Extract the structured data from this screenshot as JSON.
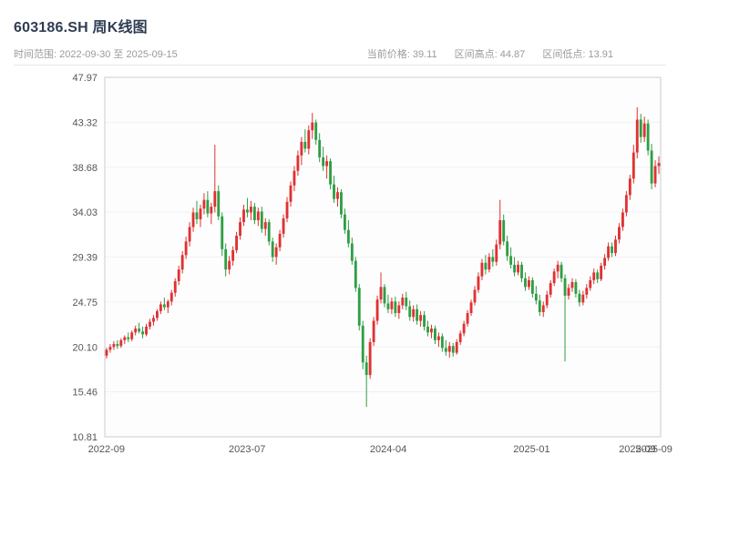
{
  "header": {
    "title": "603186.SH 周K线图",
    "subtitle_left": "时间范围: 2022-09-30 至 2025-09-15",
    "stats": [
      "当前价格: 39.11",
      "区间高点: 44.87",
      "区间低点: 13.91"
    ]
  },
  "chart_data": {
    "type": "candlestick",
    "title": "603186.SH 周K线图",
    "period": "weekly",
    "date_range": {
      "start": "2022-09-30",
      "end": "2025-09-15"
    },
    "current_price": 39.11,
    "range_high": 44.87,
    "range_low": 13.91,
    "ylim": [
      10.81,
      47.97
    ],
    "y_ticks": [
      10.81,
      15.46,
      20.1,
      24.75,
      29.39,
      34.03,
      38.68,
      43.32,
      47.97
    ],
    "x_ticks": [
      {
        "pos": 0.003,
        "label": "2022-09"
      },
      {
        "pos": 0.256,
        "label": "2023-07"
      },
      {
        "pos": 0.51,
        "label": "2024-04"
      },
      {
        "pos": 0.768,
        "label": "2025-01"
      },
      {
        "pos": 0.958,
        "label": "2025-09"
      },
      {
        "pos": 0.988,
        "label": "2025-09"
      }
    ],
    "up_color": "#e03131",
    "down_color": "#2f9e44",
    "grid": true,
    "legend": "none",
    "candles": [
      [
        19.2,
        20.0,
        18.9,
        19.8
      ],
      [
        19.8,
        20.4,
        19.5,
        20.1
      ],
      [
        20.1,
        20.7,
        19.8,
        20.4
      ],
      [
        20.4,
        20.8,
        19.9,
        20.2
      ],
      [
        20.2,
        21.0,
        20.0,
        20.8
      ],
      [
        20.8,
        21.3,
        20.4,
        21.1
      ],
      [
        21.1,
        21.6,
        20.6,
        20.9
      ],
      [
        20.9,
        21.8,
        20.7,
        21.6
      ],
      [
        21.6,
        22.3,
        21.3,
        22.0
      ],
      [
        22.0,
        22.6,
        21.5,
        21.7
      ],
      [
        21.7,
        22.2,
        21.0,
        21.4
      ],
      [
        21.4,
        22.5,
        21.2,
        22.2
      ],
      [
        22.2,
        23.0,
        21.9,
        22.7
      ],
      [
        22.7,
        23.4,
        22.3,
        23.1
      ],
      [
        23.1,
        24.0,
        22.8,
        23.8
      ],
      [
        23.8,
        24.8,
        23.5,
        24.5
      ],
      [
        24.5,
        25.2,
        23.9,
        24.2
      ],
      [
        24.2,
        25.0,
        23.6,
        24.8
      ],
      [
        24.8,
        26.0,
        24.4,
        25.7
      ],
      [
        25.7,
        27.2,
        25.3,
        26.9
      ],
      [
        26.9,
        28.5,
        26.5,
        28.1
      ],
      [
        28.1,
        30.0,
        27.7,
        29.6
      ],
      [
        29.6,
        31.5,
        29.2,
        31.0
      ],
      [
        31.0,
        33.0,
        30.5,
        32.5
      ],
      [
        32.5,
        34.5,
        32.0,
        34.0
      ],
      [
        34.0,
        35.2,
        32.8,
        33.3
      ],
      [
        33.3,
        34.8,
        32.5,
        34.4
      ],
      [
        34.4,
        36.0,
        33.8,
        35.3
      ],
      [
        35.3,
        36.2,
        33.5,
        33.9
      ],
      [
        33.9,
        35.0,
        32.8,
        34.6
      ],
      [
        34.6,
        41.0,
        34.0,
        36.2
      ],
      [
        36.2,
        36.8,
        33.2,
        33.6
      ],
      [
        33.6,
        34.0,
        29.5,
        30.2
      ],
      [
        30.2,
        30.8,
        27.4,
        28.1
      ],
      [
        28.1,
        29.5,
        27.6,
        29.0
      ],
      [
        29.0,
        30.5,
        28.5,
        30.1
      ],
      [
        30.1,
        32.0,
        29.8,
        31.6
      ],
      [
        31.6,
        33.5,
        31.2,
        33.0
      ],
      [
        33.0,
        34.8,
        32.6,
        34.3
      ],
      [
        34.3,
        35.5,
        33.5,
        34.0
      ],
      [
        34.0,
        35.2,
        33.2,
        34.6
      ],
      [
        34.6,
        35.0,
        32.8,
        33.2
      ],
      [
        33.2,
        34.5,
        32.6,
        34.1
      ],
      [
        34.1,
        34.6,
        31.9,
        32.3
      ],
      [
        32.3,
        33.4,
        31.6,
        33.0
      ],
      [
        33.0,
        33.3,
        30.6,
        31.0
      ],
      [
        31.0,
        31.4,
        28.9,
        29.4
      ],
      [
        29.4,
        30.8,
        28.6,
        30.4
      ],
      [
        30.4,
        32.2,
        30.0,
        31.8
      ],
      [
        31.8,
        33.8,
        31.4,
        33.4
      ],
      [
        33.4,
        35.6,
        33.0,
        35.1
      ],
      [
        35.1,
        37.2,
        34.6,
        36.8
      ],
      [
        36.8,
        38.8,
        36.2,
        38.3
      ],
      [
        38.3,
        40.4,
        37.8,
        39.9
      ],
      [
        39.9,
        41.8,
        38.9,
        41.3
      ],
      [
        41.3,
        42.6,
        40.2,
        40.6
      ],
      [
        40.6,
        43.0,
        40.0,
        42.5
      ],
      [
        42.5,
        44.3,
        41.6,
        43.3
      ],
      [
        43.3,
        43.6,
        41.0,
        41.5
      ],
      [
        41.5,
        42.2,
        39.2,
        39.7
      ],
      [
        39.7,
        40.8,
        38.3,
        38.8
      ],
      [
        38.8,
        39.9,
        37.5,
        39.3
      ],
      [
        39.3,
        39.6,
        36.4,
        36.9
      ],
      [
        36.9,
        37.8,
        35.0,
        35.4
      ],
      [
        35.4,
        36.6,
        34.6,
        36.1
      ],
      [
        36.1,
        36.4,
        33.4,
        33.8
      ],
      [
        33.8,
        34.4,
        31.8,
        32.2
      ],
      [
        32.2,
        33.2,
        30.4,
        30.8
      ],
      [
        30.8,
        31.4,
        28.6,
        29.0
      ],
      [
        29.0,
        29.4,
        25.8,
        26.2
      ],
      [
        26.2,
        26.6,
        21.8,
        22.3
      ],
      [
        22.3,
        22.8,
        17.8,
        18.5
      ],
      [
        18.5,
        19.2,
        13.91,
        17.2
      ],
      [
        17.2,
        21.0,
        16.8,
        20.6
      ],
      [
        20.6,
        23.2,
        20.2,
        22.8
      ],
      [
        22.8,
        25.4,
        22.4,
        25.0
      ],
      [
        25.0,
        27.8,
        24.6,
        26.3
      ],
      [
        26.3,
        26.6,
        24.2,
        24.6
      ],
      [
        24.6,
        25.5,
        23.6,
        24.0
      ],
      [
        24.0,
        25.2,
        23.5,
        24.8
      ],
      [
        24.8,
        25.3,
        23.2,
        23.6
      ],
      [
        23.6,
        24.8,
        23.0,
        24.4
      ],
      [
        24.4,
        25.6,
        24.0,
        25.2
      ],
      [
        25.2,
        25.8,
        23.9,
        24.3
      ],
      [
        24.3,
        24.9,
        22.8,
        23.2
      ],
      [
        23.2,
        24.4,
        22.7,
        24.0
      ],
      [
        24.0,
        24.5,
        22.4,
        22.8
      ],
      [
        22.8,
        23.8,
        22.2,
        23.4
      ],
      [
        23.4,
        23.8,
        21.8,
        22.2
      ],
      [
        22.2,
        22.8,
        21.2,
        21.6
      ],
      [
        21.6,
        22.4,
        21.0,
        22.0
      ],
      [
        22.0,
        22.3,
        20.4,
        20.8
      ],
      [
        20.8,
        21.6,
        20.1,
        21.2
      ],
      [
        21.2,
        21.5,
        19.6,
        20.0
      ],
      [
        20.0,
        20.8,
        19.2,
        19.6
      ],
      [
        19.6,
        20.6,
        19.0,
        20.2
      ],
      [
        20.2,
        20.5,
        19.1,
        19.5
      ],
      [
        19.5,
        20.9,
        19.3,
        20.6
      ],
      [
        20.6,
        21.8,
        20.3,
        21.5
      ],
      [
        21.5,
        22.8,
        21.2,
        22.5
      ],
      [
        22.5,
        23.9,
        22.2,
        23.6
      ],
      [
        23.6,
        25.0,
        23.3,
        24.7
      ],
      [
        24.7,
        26.4,
        24.4,
        26.0
      ],
      [
        26.0,
        27.8,
        25.7,
        27.4
      ],
      [
        27.4,
        29.2,
        27.0,
        28.8
      ],
      [
        28.8,
        29.6,
        27.6,
        28.1
      ],
      [
        28.1,
        29.8,
        27.8,
        29.4
      ],
      [
        29.4,
        30.2,
        28.4,
        28.9
      ],
      [
        28.9,
        31.2,
        28.5,
        30.7
      ],
      [
        30.7,
        35.3,
        30.2,
        33.2
      ],
      [
        33.2,
        33.8,
        30.6,
        31.0
      ],
      [
        31.0,
        31.6,
        29.0,
        29.5
      ],
      [
        29.5,
        30.4,
        28.2,
        28.6
      ],
      [
        28.6,
        29.4,
        27.4,
        27.8
      ],
      [
        27.8,
        29.0,
        27.5,
        28.6
      ],
      [
        28.6,
        28.9,
        26.8,
        27.2
      ],
      [
        27.2,
        27.8,
        25.9,
        26.3
      ],
      [
        26.3,
        27.4,
        26.0,
        27.0
      ],
      [
        27.0,
        27.3,
        25.2,
        25.6
      ],
      [
        25.6,
        26.4,
        24.5,
        24.9
      ],
      [
        24.9,
        25.5,
        23.3,
        23.7
      ],
      [
        23.7,
        24.8,
        23.2,
        24.4
      ],
      [
        24.4,
        25.9,
        24.1,
        25.5
      ],
      [
        25.5,
        27.0,
        25.2,
        26.7
      ],
      [
        26.7,
        28.2,
        26.4,
        27.9
      ],
      [
        27.9,
        29.0,
        27.2,
        28.6
      ],
      [
        28.6,
        28.9,
        26.8,
        27.2
      ],
      [
        27.2,
        27.6,
        18.6,
        25.4
      ],
      [
        25.4,
        26.6,
        25.0,
        26.2
      ],
      [
        26.2,
        27.2,
        25.8,
        26.8
      ],
      [
        26.8,
        27.1,
        25.2,
        25.6
      ],
      [
        25.6,
        26.0,
        24.3,
        24.7
      ],
      [
        24.7,
        25.9,
        24.4,
        25.5
      ],
      [
        25.5,
        26.6,
        25.1,
        26.2
      ],
      [
        26.2,
        27.4,
        25.9,
        27.0
      ],
      [
        27.0,
        28.2,
        26.6,
        27.8
      ],
      [
        27.8,
        28.1,
        26.7,
        27.1
      ],
      [
        27.1,
        28.8,
        26.9,
        28.5
      ],
      [
        28.5,
        29.7,
        28.1,
        29.3
      ],
      [
        29.3,
        30.9,
        29.0,
        30.5
      ],
      [
        30.5,
        30.9,
        29.4,
        29.8
      ],
      [
        29.8,
        31.6,
        29.5,
        31.2
      ],
      [
        31.2,
        32.9,
        30.8,
        32.5
      ],
      [
        32.5,
        34.4,
        32.1,
        34.0
      ],
      [
        34.0,
        36.2,
        33.6,
        35.8
      ],
      [
        35.8,
        37.9,
        35.3,
        37.5
      ],
      [
        37.5,
        41.0,
        37.0,
        40.2
      ],
      [
        40.2,
        44.87,
        39.6,
        43.6
      ],
      [
        43.6,
        44.2,
        41.2,
        41.8
      ],
      [
        41.8,
        43.9,
        41.3,
        43.2
      ],
      [
        43.2,
        43.6,
        39.9,
        40.4
      ],
      [
        40.4,
        41.1,
        36.4,
        37.0
      ],
      [
        37.0,
        39.4,
        36.6,
        38.8
      ],
      [
        38.8,
        39.8,
        38.0,
        39.11
      ]
    ]
  }
}
